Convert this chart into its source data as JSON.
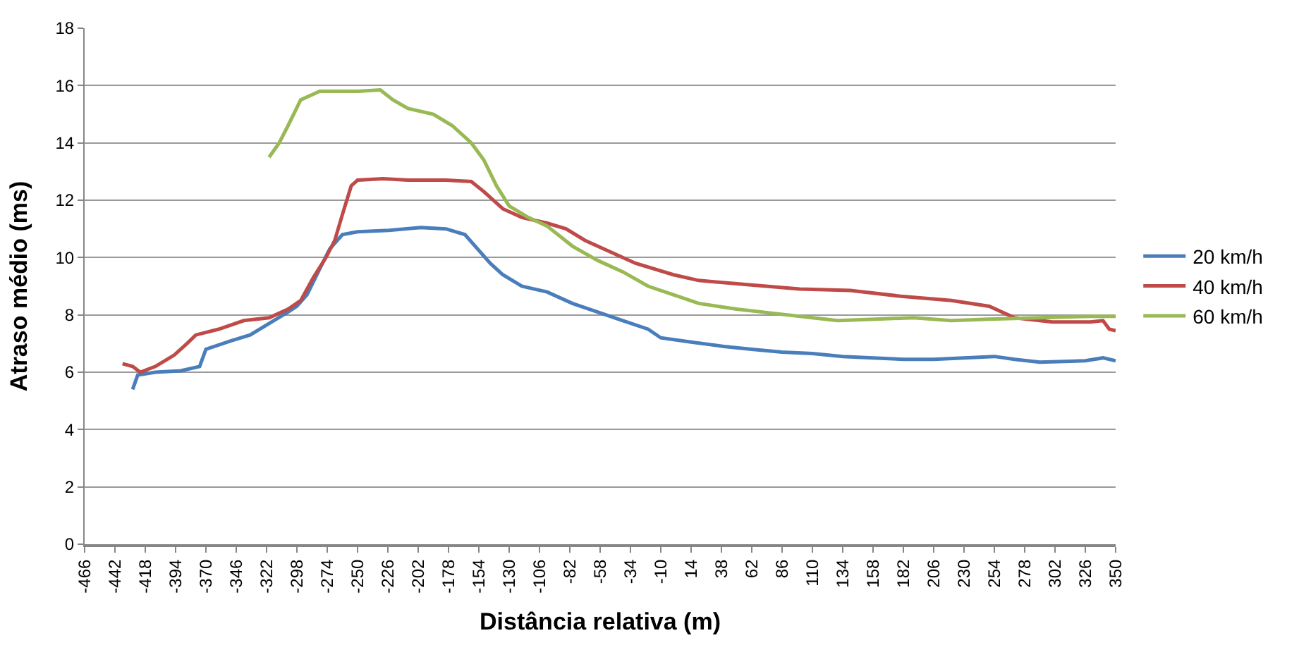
{
  "chart_data": {
    "type": "line",
    "xlabel": "Distância relativa (m)",
    "ylabel": "Atraso médio (ms)",
    "xlim": [
      -466,
      350
    ],
    "xticks": [
      -466,
      -442,
      -418,
      -394,
      -370,
      -346,
      -322,
      -298,
      -274,
      -250,
      -226,
      -202,
      -178,
      -154,
      -130,
      -106,
      -82,
      -58,
      -34,
      -10,
      14,
      38,
      62,
      86,
      110,
      134,
      158,
      182,
      206,
      230,
      254,
      278,
      302,
      326,
      350
    ],
    "ylim": [
      0,
      18
    ],
    "yticks": [
      0,
      2,
      4,
      6,
      8,
      10,
      12,
      14,
      16,
      18
    ],
    "grid": "y",
    "legend": "right",
    "marker": "none",
    "line_style": "solid",
    "series": [
      {
        "name": "20 km/h",
        "color": "#4a7ebb",
        "x": [
          -428,
          -424,
          -410,
          -390,
          -375,
          -370,
          -350,
          -335,
          -320,
          -305,
          -298,
          -290,
          -280,
          -272,
          -262,
          -250,
          -225,
          -200,
          -180,
          -165,
          -155,
          -145,
          -135,
          -120,
          -100,
          -80,
          -60,
          -40,
          -20,
          -10,
          14,
          40,
          62,
          86,
          110,
          134,
          158,
          182,
          206,
          230,
          254,
          270,
          290,
          326,
          340,
          350
        ],
        "values": [
          5.4,
          5.9,
          6.0,
          6.05,
          6.2,
          6.8,
          7.1,
          7.3,
          7.7,
          8.1,
          8.3,
          8.7,
          9.6,
          10.3,
          10.8,
          10.9,
          10.95,
          11.05,
          11.0,
          10.8,
          10.3,
          9.8,
          9.4,
          9.0,
          8.8,
          8.4,
          8.1,
          7.8,
          7.5,
          7.2,
          7.05,
          6.9,
          6.8,
          6.7,
          6.65,
          6.55,
          6.5,
          6.45,
          6.45,
          6.5,
          6.55,
          6.45,
          6.35,
          6.4,
          6.5,
          6.4
        ]
      },
      {
        "name": "40 km/h",
        "color": "#be4b48",
        "x": [
          -436,
          -428,
          -422,
          -410,
          -395,
          -385,
          -378,
          -360,
          -340,
          -320,
          -305,
          -295,
          -285,
          -275,
          -268,
          -262,
          -255,
          -250,
          -230,
          -210,
          -180,
          -160,
          -150,
          -135,
          -120,
          -100,
          -85,
          -70,
          -50,
          -30,
          0,
          20,
          60,
          100,
          140,
          180,
          220,
          250,
          270,
          300,
          330,
          340,
          345,
          350
        ],
        "values": [
          6.3,
          6.2,
          6.0,
          6.2,
          6.6,
          7.0,
          7.3,
          7.5,
          7.8,
          7.9,
          8.2,
          8.5,
          9.3,
          10.0,
          10.6,
          11.5,
          12.5,
          12.7,
          12.75,
          12.7,
          12.7,
          12.65,
          12.3,
          11.7,
          11.4,
          11.2,
          11.0,
          10.6,
          10.2,
          9.8,
          9.4,
          9.2,
          9.05,
          8.9,
          8.85,
          8.65,
          8.5,
          8.3,
          7.9,
          7.75,
          7.75,
          7.8,
          7.5,
          7.45
        ]
      },
      {
        "name": "60 km/h",
        "color": "#98b954",
        "x": [
          -320,
          -312,
          -305,
          -295,
          -280,
          -250,
          -232,
          -222,
          -210,
          -190,
          -175,
          -160,
          -150,
          -140,
          -130,
          -115,
          -100,
          -80,
          -60,
          -40,
          -20,
          0,
          20,
          50,
          80,
          110,
          130,
          160,
          190,
          220,
          250,
          290,
          330,
          350
        ],
        "values": [
          13.5,
          14.0,
          14.6,
          15.5,
          15.8,
          15.8,
          15.85,
          15.5,
          15.2,
          15.0,
          14.6,
          14.0,
          13.4,
          12.5,
          11.8,
          11.4,
          11.1,
          10.4,
          9.9,
          9.5,
          9.0,
          8.7,
          8.4,
          8.2,
          8.05,
          7.9,
          7.8,
          7.85,
          7.9,
          7.8,
          7.85,
          7.9,
          7.95,
          7.95
        ]
      }
    ]
  }
}
